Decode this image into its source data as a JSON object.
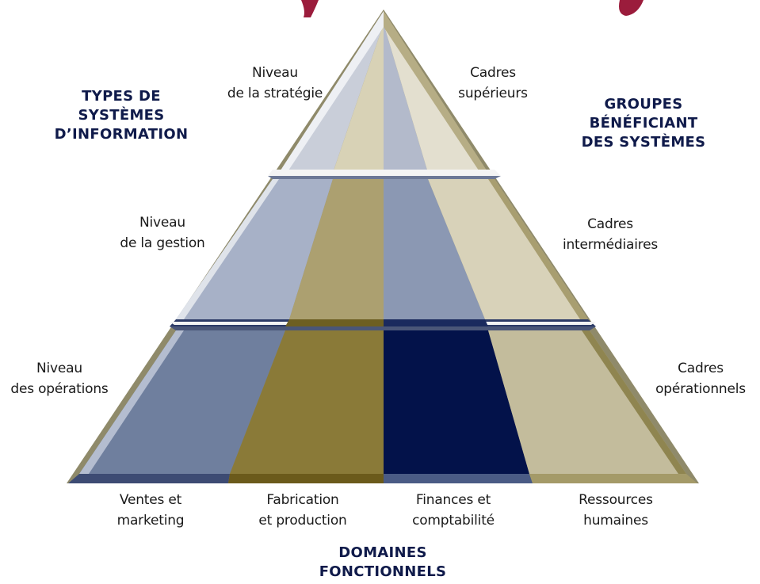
{
  "headers": {
    "left": [
      "TYPES DE",
      "SYSTÈMES",
      "D’INFORMATION"
    ],
    "right": [
      "GROUPES",
      "BÉNÉFICIANT",
      "DES SYSTÈMES"
    ],
    "bottom": [
      "DOMAINES",
      "FONCTIONNELS"
    ]
  },
  "levels": [
    {
      "left": [
        "Niveau",
        "de la stratégie"
      ],
      "right": [
        "Cadres",
        "supérieurs"
      ]
    },
    {
      "left": [
        "Niveau",
        "de la gestion"
      ],
      "right": [
        "Cadres",
        "intermédiaires"
      ]
    },
    {
      "left": [
        "Niveau",
        "des opérations"
      ],
      "right": [
        "Cadres",
        "opérationnels"
      ]
    }
  ],
  "domains": [
    [
      "Ventes et",
      "marketing"
    ],
    [
      "Fabrication",
      "et production"
    ],
    [
      "Finances et",
      "comptabilité"
    ],
    [
      "Ressources",
      "humaines"
    ]
  ],
  "colors": {
    "header_text": "#0f1a4a",
    "title_fragment": "#9b1c3c",
    "blue_light": "#c9ced9",
    "blue_mid": "#a7b1c7",
    "blue_dark": "#6f7f9e",
    "olive_light": "#d8d2b6",
    "olive_mid": "#aca070",
    "olive_dark": "#8a7a38",
    "navy_light": "#b3bacb",
    "navy_mid": "#8b98b3",
    "navy_dark": "#03124a",
    "beige_light": "#e3dfcf",
    "beige_mid": "#d8d2b9",
    "beige_dark": "#c3bc9c"
  }
}
